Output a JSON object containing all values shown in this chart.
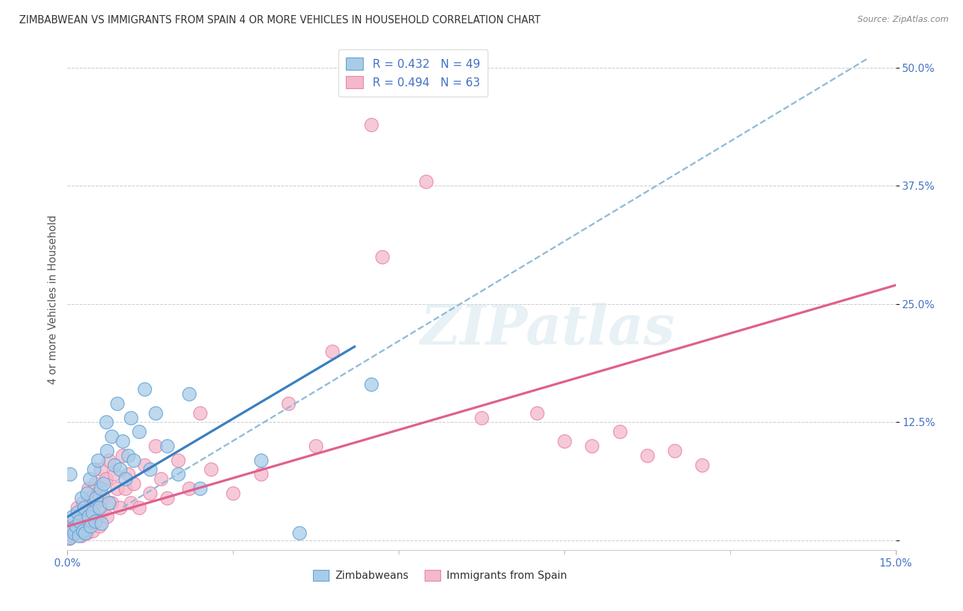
{
  "title": "ZIMBABWEAN VS IMMIGRANTS FROM SPAIN 4 OR MORE VEHICLES IN HOUSEHOLD CORRELATION CHART",
  "source": "Source: ZipAtlas.com",
  "ylabel": "4 or more Vehicles in Household",
  "legend_blue_label": "Zimbabweans",
  "legend_pink_label": "Immigrants from Spain",
  "blue_R": 0.432,
  "blue_N": 49,
  "pink_R": 0.494,
  "pink_N": 63,
  "blue_color": "#a8cce8",
  "pink_color": "#f4b8cb",
  "blue_edge_color": "#5b9fd4",
  "pink_edge_color": "#e87fa5",
  "blue_line_color": "#3a7fc1",
  "pink_line_color": "#e06090",
  "dash_line_color": "#90bcd8",
  "xlim": [
    0.0,
    15.0
  ],
  "ylim": [
    -1.0,
    52.0
  ],
  "blue_scatter": [
    [
      0.05,
      0.3
    ],
    [
      0.08,
      1.2
    ],
    [
      0.1,
      2.5
    ],
    [
      0.12,
      0.8
    ],
    [
      0.15,
      1.5
    ],
    [
      0.18,
      3.0
    ],
    [
      0.2,
      0.5
    ],
    [
      0.22,
      2.0
    ],
    [
      0.25,
      4.5
    ],
    [
      0.28,
      1.0
    ],
    [
      0.3,
      3.5
    ],
    [
      0.32,
      0.8
    ],
    [
      0.35,
      5.0
    ],
    [
      0.38,
      2.5
    ],
    [
      0.4,
      6.5
    ],
    [
      0.42,
      1.5
    ],
    [
      0.45,
      3.0
    ],
    [
      0.48,
      7.5
    ],
    [
      0.5,
      2.0
    ],
    [
      0.52,
      4.5
    ],
    [
      0.55,
      8.5
    ],
    [
      0.58,
      3.5
    ],
    [
      0.6,
      5.5
    ],
    [
      0.62,
      1.8
    ],
    [
      0.65,
      6.0
    ],
    [
      0.7,
      12.5
    ],
    [
      0.72,
      9.5
    ],
    [
      0.75,
      4.0
    ],
    [
      0.8,
      11.0
    ],
    [
      0.85,
      8.0
    ],
    [
      0.9,
      14.5
    ],
    [
      0.95,
      7.5
    ],
    [
      1.0,
      10.5
    ],
    [
      1.05,
      6.5
    ],
    [
      1.1,
      9.0
    ],
    [
      1.15,
      13.0
    ],
    [
      1.2,
      8.5
    ],
    [
      1.3,
      11.5
    ],
    [
      1.4,
      16.0
    ],
    [
      1.5,
      7.5
    ],
    [
      1.6,
      13.5
    ],
    [
      1.8,
      10.0
    ],
    [
      2.0,
      7.0
    ],
    [
      2.2,
      15.5
    ],
    [
      2.4,
      5.5
    ],
    [
      3.5,
      8.5
    ],
    [
      4.2,
      0.8
    ],
    [
      5.5,
      16.5
    ],
    [
      0.05,
      7.0
    ]
  ],
  "pink_scatter": [
    [
      0.03,
      0.2
    ],
    [
      0.06,
      1.5
    ],
    [
      0.09,
      0.5
    ],
    [
      0.12,
      2.0
    ],
    [
      0.15,
      0.8
    ],
    [
      0.18,
      3.5
    ],
    [
      0.2,
      1.2
    ],
    [
      0.22,
      2.8
    ],
    [
      0.25,
      0.5
    ],
    [
      0.28,
      4.0
    ],
    [
      0.3,
      1.5
    ],
    [
      0.32,
      3.0
    ],
    [
      0.35,
      0.8
    ],
    [
      0.38,
      5.5
    ],
    [
      0.4,
      2.0
    ],
    [
      0.42,
      4.5
    ],
    [
      0.45,
      1.0
    ],
    [
      0.48,
      3.5
    ],
    [
      0.5,
      6.0
    ],
    [
      0.52,
      2.5
    ],
    [
      0.55,
      5.0
    ],
    [
      0.58,
      1.5
    ],
    [
      0.6,
      7.5
    ],
    [
      0.62,
      3.0
    ],
    [
      0.65,
      4.5
    ],
    [
      0.7,
      6.5
    ],
    [
      0.72,
      2.5
    ],
    [
      0.75,
      8.5
    ],
    [
      0.8,
      4.0
    ],
    [
      0.85,
      7.0
    ],
    [
      0.9,
      5.5
    ],
    [
      0.95,
      3.5
    ],
    [
      1.0,
      9.0
    ],
    [
      1.05,
      5.5
    ],
    [
      1.1,
      7.0
    ],
    [
      1.15,
      4.0
    ],
    [
      1.2,
      6.0
    ],
    [
      1.3,
      3.5
    ],
    [
      1.4,
      8.0
    ],
    [
      1.5,
      5.0
    ],
    [
      1.6,
      10.0
    ],
    [
      1.7,
      6.5
    ],
    [
      1.8,
      4.5
    ],
    [
      2.0,
      8.5
    ],
    [
      2.2,
      5.5
    ],
    [
      2.4,
      13.5
    ],
    [
      2.6,
      7.5
    ],
    [
      3.0,
      5.0
    ],
    [
      3.5,
      7.0
    ],
    [
      4.0,
      14.5
    ],
    [
      4.5,
      10.0
    ],
    [
      4.8,
      20.0
    ],
    [
      5.5,
      44.0
    ],
    [
      5.7,
      30.0
    ],
    [
      6.5,
      38.0
    ],
    [
      7.5,
      13.0
    ],
    [
      8.5,
      13.5
    ],
    [
      9.0,
      10.5
    ],
    [
      9.5,
      10.0
    ],
    [
      10.0,
      11.5
    ],
    [
      10.5,
      9.0
    ],
    [
      11.0,
      9.5
    ],
    [
      11.5,
      8.0
    ]
  ],
  "blue_trend_x": [
    0.0,
    5.2
  ],
  "blue_trend_y": [
    2.5,
    20.5
  ],
  "pink_trend_x": [
    0.0,
    15.0
  ],
  "pink_trend_y": [
    1.5,
    27.0
  ],
  "dash_trend_x": [
    1.0,
    14.5
  ],
  "dash_trend_y": [
    3.5,
    51.0
  ]
}
